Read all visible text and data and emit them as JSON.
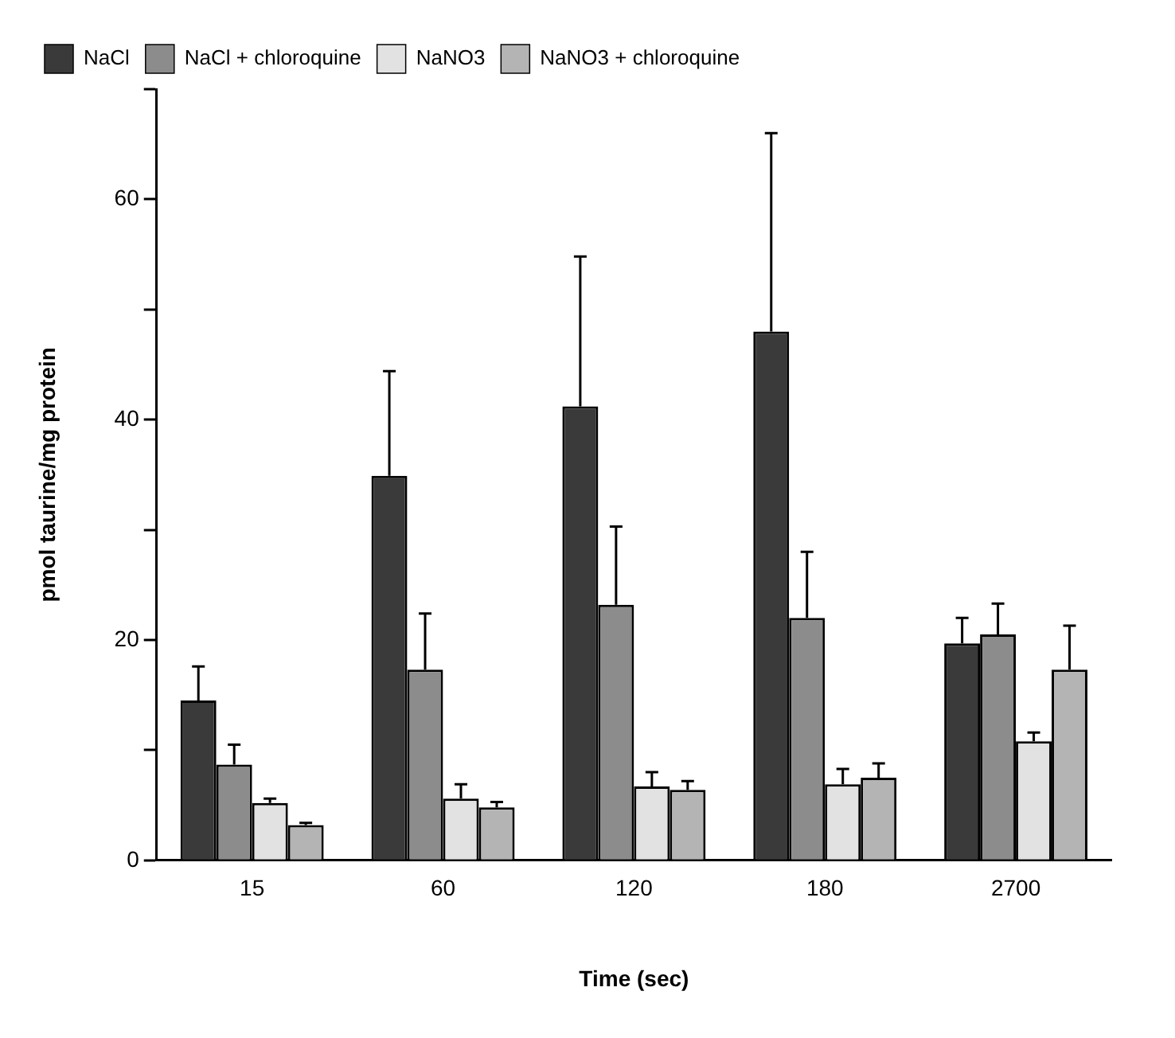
{
  "chart_data": {
    "type": "bar",
    "xlabel": "Time (sec)",
    "ylabel": "pmol taurine/mg protein",
    "categories": [
      "15",
      "60",
      "120",
      "180",
      "2700"
    ],
    "series": [
      {
        "name": "NaCl",
        "color": "#3a3a3a",
        "values": [
          14.5,
          34.9,
          41.2,
          48.0,
          19.7
        ],
        "errors": [
          [
            14.5,
            17.6
          ],
          [
            34.9,
            44.4
          ],
          [
            41.2,
            54.8
          ],
          [
            48.0,
            66.0
          ],
          [
            19.7,
            22.0
          ]
        ]
      },
      {
        "name": "NaCl + chloroquine",
        "color": "#8c8c8c",
        "values": [
          8.7,
          17.3,
          23.2,
          22.0,
          20.5
        ],
        "errors": [
          [
            8.7,
            10.5
          ],
          [
            17.3,
            22.4
          ],
          [
            23.2,
            30.3
          ],
          [
            22.0,
            28.0
          ],
          [
            20.5,
            23.3
          ]
        ]
      },
      {
        "name": "NaNO3",
        "color": "#e2e2e2",
        "values": [
          5.2,
          5.6,
          6.7,
          6.9,
          10.8
        ],
        "errors": [
          [
            5.2,
            5.6
          ],
          [
            5.6,
            6.9
          ],
          [
            6.7,
            8.0
          ],
          [
            6.9,
            8.3
          ],
          [
            10.8,
            11.6
          ]
        ]
      },
      {
        "name": "NaNO3 + chloroquine",
        "color": "#b4b4b4",
        "values": [
          3.2,
          4.8,
          6.4,
          7.5,
          17.3
        ],
        "errors": [
          [
            3.2,
            3.4
          ],
          [
            4.8,
            5.3
          ],
          [
            6.4,
            7.2
          ],
          [
            7.5,
            8.8
          ],
          [
            17.3,
            21.3
          ]
        ]
      }
    ],
    "ylim": [
      0,
      70
    ],
    "yticks": [
      0,
      {
        "value": 10,
        "label": null
      },
      20,
      {
        "value": 30,
        "label": null
      },
      40,
      {
        "value": 50,
        "label": null
      },
      60,
      {
        "value": 70,
        "label": null
      }
    ],
    "grid": false,
    "legend": "top left"
  }
}
